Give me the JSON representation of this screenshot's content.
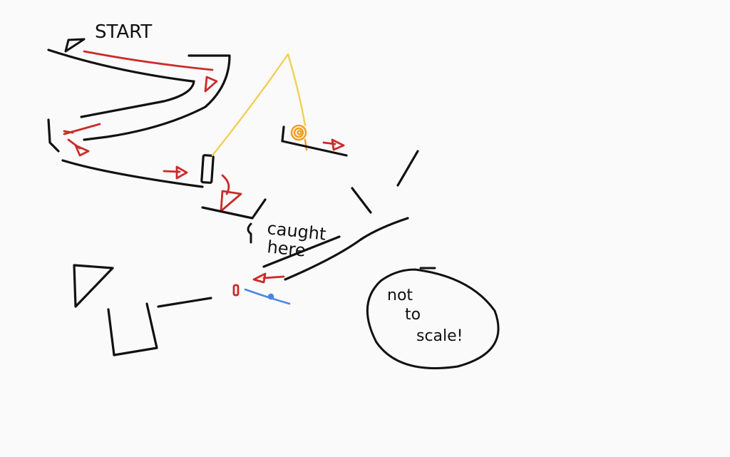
{
  "labels": {
    "start": "START",
    "caught_line1": "caught",
    "caught_line2": "here",
    "note_line1": "not",
    "note_line2": "to",
    "note_line3": "scale!"
  },
  "colors": {
    "background": "#fafafa",
    "ink": "#111111",
    "path_arrow": "#cc2a2a",
    "rope": "#f2cf55",
    "ball": "#f0a020",
    "catcher": "#4a86e0"
  },
  "icons": {
    "start_arrow": "arrow-icon",
    "path_arrows": "arrow-icon",
    "weight": "ball-icon"
  }
}
